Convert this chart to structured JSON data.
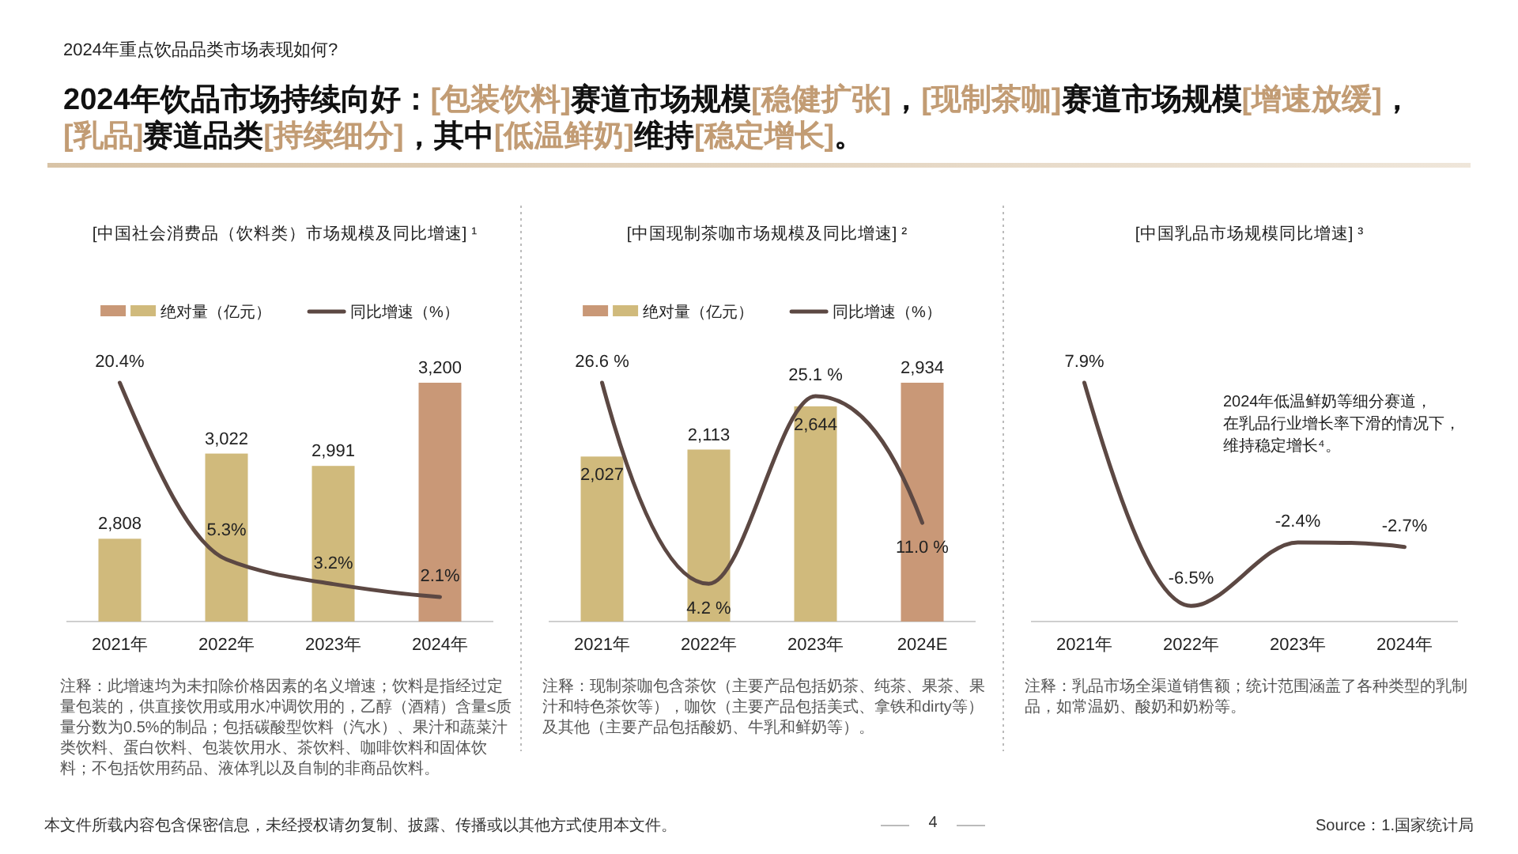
{
  "chart_data": [
    {
      "type": "other",
      "subtitle": "2024年重点饮品品类市场表现如何?",
      "title": "2024年饮品市场持续向好：[包装饮料]赛道市场规模[稳健扩张]，[现制茶咖]赛道市场规模[增速放缓]，[乳品]赛道品类[持续细分]，其中[低温鲜奶]维持[稳定增长]。"
    },
    {
      "type": "bar",
      "title": "[中国社会消费品（饮料类）市场规模及同比增速] ¹",
      "categories": [
        "2021年",
        "2022年",
        "2023年",
        "2024年"
      ],
      "ylim": [
        2600,
        3200
      ],
      "y2lim": [
        0,
        20.4
      ],
      "legend": "top",
      "tick_labels": "x",
      "series": [
        {
          "name": "绝对量（亿元）",
          "colors": [
            "#d0ba7c",
            "#d0ba7c",
            "#d0ba7c",
            "#c99877"
          ],
          "values": [
            2808,
            3022,
            2991,
            3200
          ],
          "value_labels": [
            "2,808",
            "3,022",
            "2,991",
            "3,200"
          ]
        },
        {
          "name": "同比增速（%）",
          "type": "line",
          "axis": "y2",
          "color": "#5c4843",
          "values": [
            20.4,
            5.3,
            3.2,
            2.1
          ],
          "value_labels": [
            "20.4%",
            "5.3%",
            "3.2%",
            "2.1%"
          ]
        }
      ],
      "annotations": [
        "注释：此增速均为未扣除价格因素的名义增速；饮料是指经过定量包装的，供直接饮用或用水冲调饮用的，乙醇（酒精）含量≤质量分数为0.5%的制品；包括碳酸型饮料（汽水）、果汁和蔬菜汁类饮料、蛋白饮料、包装饮用水、茶饮料、咖啡饮料和固体饮料；不包括饮用药品、液体乳以及自制的非商品饮料。"
      ]
    },
    {
      "type": "bar",
      "title": "[中国现制茶咖市场规模及同比增速] ²",
      "categories": [
        "2021年",
        "2022年",
        "2023年",
        "2024E"
      ],
      "ylim": [
        0,
        2934
      ],
      "y2lim": [
        0,
        26.6
      ],
      "legend": "top",
      "tick_labels": "x",
      "series": [
        {
          "name": "绝对量（亿元）",
          "colors": [
            "#d0ba7c",
            "#d0ba7c",
            "#d0ba7c",
            "#c99877"
          ],
          "values": [
            2027,
            2113,
            2644,
            2934
          ],
          "value_labels": [
            "2,027",
            "2,113",
            "2,644",
            "2,934"
          ]
        },
        {
          "name": "同比增速（%）",
          "type": "line",
          "axis": "y2",
          "color": "#5c4843",
          "values": [
            26.6,
            4.2,
            25.1,
            11.0
          ],
          "value_labels": [
            "26.6 %",
            "4.2 %",
            "25.1 %",
            "11.0 %"
          ]
        }
      ],
      "annotations": [
        "注释：现制茶咖包含茶饮（主要产品包括奶茶、纯茶、果茶、果汁和特色茶饮等），咖饮（主要产品包括美式、拿铁和dirty等）及其他（主要产品包括酸奶、牛乳和鲜奶等）。"
      ]
    },
    {
      "type": "line",
      "title": "[中国乳品市场规模同比增速] ³",
      "categories": [
        "2021年",
        "2022年",
        "2023年",
        "2024年"
      ],
      "tick_labels": "x",
      "series": [
        {
          "color": "#5c4843",
          "values": [
            7.9,
            -6.5,
            -2.4,
            -2.7
          ],
          "value_labels": [
            "7.9%",
            "-6.5%",
            "-2.4%",
            "-2.7%"
          ]
        }
      ],
      "annotations": [
        "2024年低温鲜奶等细分赛道，在乳品行业增长率下滑的情况下，维持稳定增长⁴。",
        "注释：乳品市场全渠道销售额；统计范围涵盖了各种类型的乳制品，如常温奶、酸奶和奶粉等。"
      ]
    },
    {
      "type": "other",
      "annotations": [
        "本文件所载内容包含保密信息，未经授权请勿复制、披露、传播或以其他方式使用本文件。",
        "4",
        "Source：1.国家统计局"
      ]
    }
  ]
}
